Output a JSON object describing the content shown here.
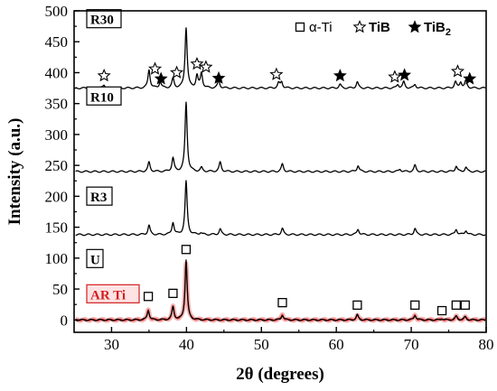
{
  "chart_data": {
    "type": "line",
    "xlabel": "2θ (degrees)",
    "ylabel": "Intensity (a.u.)",
    "xlim": [
      25,
      80
    ],
    "ylim": [
      -20,
      500
    ],
    "xticks": [
      30,
      40,
      50,
      60,
      70,
      80
    ],
    "yticks": [
      0,
      50,
      100,
      150,
      200,
      250,
      300,
      350,
      400,
      450,
      500
    ],
    "grid": false,
    "legend_position": "top-right",
    "legend": [
      {
        "marker": "open-square",
        "label": "α-Ti"
      },
      {
        "marker": "open-star",
        "label": "TiB"
      },
      {
        "marker": "filled-star",
        "label": "TiB",
        "subscript": "2"
      }
    ],
    "series": [
      {
        "name": "AR Ti",
        "color": "#d21f1f",
        "label_color": "#d21f1f",
        "label_bg": "#fde3e3",
        "baseline": 0,
        "peaks": [
          [
            34.9,
            16
          ],
          [
            38.2,
            21
          ],
          [
            39.95,
            92
          ],
          [
            52.8,
            9
          ],
          [
            62.8,
            8
          ],
          [
            70.5,
            8
          ],
          [
            74.1,
            2
          ],
          [
            76.0,
            6
          ],
          [
            77.2,
            5
          ]
        ]
      },
      {
        "name": "U",
        "color": "#000000",
        "baseline": 0,
        "peaks": [
          [
            34.9,
            16
          ],
          [
            38.2,
            21
          ],
          [
            39.95,
            97
          ],
          [
            52.8,
            8
          ],
          [
            62.8,
            8
          ],
          [
            70.5,
            8
          ],
          [
            74.1,
            2
          ],
          [
            76.0,
            6
          ],
          [
            77.2,
            5
          ]
        ]
      },
      {
        "name": "R3",
        "color": "#000000",
        "baseline": 138,
        "peaks": [
          [
            35.0,
            15
          ],
          [
            38.2,
            20
          ],
          [
            39.95,
            86
          ],
          [
            41.9,
            3
          ],
          [
            44.5,
            9
          ],
          [
            52.8,
            10
          ],
          [
            62.9,
            9
          ],
          [
            70.5,
            10
          ],
          [
            76.0,
            9
          ],
          [
            77.3,
            7
          ]
        ]
      },
      {
        "name": "R10",
        "color": "#000000",
        "baseline": 240,
        "peaks": [
          [
            35.0,
            15
          ],
          [
            38.2,
            22
          ],
          [
            39.95,
            112
          ],
          [
            42.0,
            6
          ],
          [
            44.5,
            15
          ],
          [
            52.8,
            12
          ],
          [
            62.9,
            10
          ],
          [
            68.5,
            4
          ],
          [
            70.5,
            10
          ],
          [
            76.0,
            9
          ],
          [
            77.3,
            7
          ]
        ]
      },
      {
        "name": "R30",
        "color": "#000000",
        "baseline": 375,
        "peaks": [
          [
            29.0,
            5
          ],
          [
            35.0,
            30
          ],
          [
            36.5,
            10
          ],
          [
            38.2,
            15
          ],
          [
            39.95,
            98
          ],
          [
            41.4,
            20
          ],
          [
            42.0,
            24
          ],
          [
            44.3,
            12
          ],
          [
            52.3,
            8
          ],
          [
            52.7,
            10
          ],
          [
            60.5,
            6
          ],
          [
            62.8,
            10
          ],
          [
            68.2,
            6
          ],
          [
            69.0,
            10
          ],
          [
            70.5,
            6
          ],
          [
            75.9,
            10
          ],
          [
            76.6,
            10
          ],
          [
            77.3,
            12
          ]
        ]
      }
    ],
    "markers": [
      {
        "type": "open-square",
        "points": [
          [
            34.9,
            38
          ],
          [
            38.2,
            43
          ],
          [
            39.95,
            114
          ],
          [
            52.8,
            28
          ],
          [
            62.8,
            24
          ],
          [
            70.5,
            24
          ],
          [
            74.1,
            15
          ],
          [
            76.0,
            24
          ],
          [
            77.2,
            24
          ]
        ]
      },
      {
        "type": "open-star",
        "points": [
          [
            29.0,
            395
          ],
          [
            35.8,
            406
          ],
          [
            38.7,
            400
          ],
          [
            41.4,
            414
          ],
          [
            42.6,
            409
          ],
          [
            52.0,
            397
          ],
          [
            67.8,
            393
          ],
          [
            76.2,
            402
          ]
        ]
      },
      {
        "type": "filled-star",
        "points": [
          [
            36.6,
            390
          ],
          [
            44.3,
            391
          ],
          [
            60.5,
            395
          ],
          [
            69.1,
            396
          ],
          [
            77.8,
            390
          ]
        ]
      }
    ]
  }
}
